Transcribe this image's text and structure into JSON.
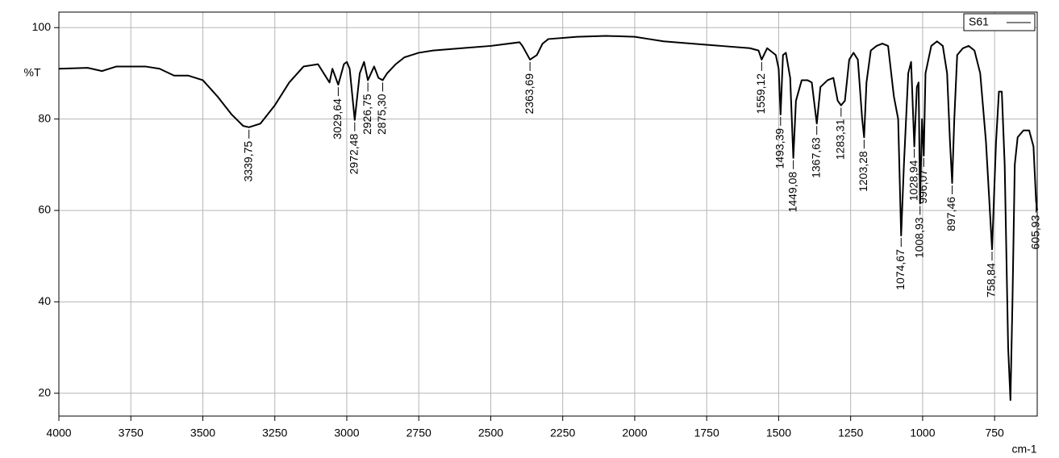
{
  "chart_data": {
    "type": "line",
    "x_label": "cm-1",
    "y_label": "%T",
    "xlim": [
      4000,
      602
    ],
    "ylim": [
      15,
      103.4
    ],
    "xticks": [
      4000,
      3750,
      3500,
      3250,
      3000,
      2750,
      2500,
      2250,
      2000,
      1750,
      1500,
      1250,
      1000,
      750
    ],
    "yticks": [
      20,
      40,
      60,
      80,
      100
    ],
    "grid": true,
    "legend": "upper right",
    "series": [
      {
        "name": "S61",
        "color": "#000000",
        "x": [
          4000,
          3900,
          3850,
          3800,
          3750,
          3700,
          3650,
          3600,
          3550,
          3500,
          3450,
          3400,
          3360,
          3339.75,
          3300,
          3250,
          3200,
          3150,
          3100,
          3060,
          3050,
          3029.64,
          3010,
          3000,
          2990,
          2972.48,
          2955,
          2940,
          2926.75,
          2905,
          2890,
          2875.3,
          2860,
          2830,
          2800,
          2750,
          2700,
          2600,
          2500,
          2400,
          2390,
          2363.69,
          2340,
          2320,
          2300,
          2200,
          2100,
          2000,
          1950,
          1900,
          1800,
          1700,
          1600,
          1570,
          1559.12,
          1540,
          1510,
          1500,
          1493.39,
          1485,
          1475,
          1460,
          1449.08,
          1440,
          1420,
          1400,
          1385,
          1367.63,
          1355,
          1330,
          1310,
          1295,
          1283.31,
          1270,
          1255,
          1240,
          1225,
          1210,
          1203.28,
          1195,
          1180,
          1160,
          1140,
          1120,
          1100,
          1085,
          1074.67,
          1065,
          1050,
          1040,
          1028.94,
          1020,
          1014,
          1008.93,
          1002,
          996.07,
          990,
          970,
          950,
          930,
          915,
          905,
          897.46,
          890,
          880,
          860,
          840,
          820,
          800,
          780,
          758.84,
          745,
          735,
          725,
          715,
          703,
          695,
          688,
          680,
          670,
          650,
          630,
          615,
          605.93,
          602
        ],
        "values": [
          91,
          91.2,
          90.5,
          91.5,
          91.5,
          91.5,
          91,
          89.5,
          89.5,
          88.5,
          85,
          81,
          78.5,
          78.2,
          79,
          83,
          88,
          91.5,
          92,
          88,
          91,
          87.5,
          92,
          92.5,
          91,
          79.8,
          90,
          92.5,
          88.5,
          91.5,
          89,
          88.5,
          90,
          92,
          93.5,
          94.5,
          95,
          95.5,
          96,
          96.8,
          96,
          93,
          94,
          96.5,
          97.5,
          98,
          98.2,
          98,
          97.5,
          97,
          96.5,
          96,
          95.5,
          95,
          93,
          95.5,
          94,
          91,
          81,
          94,
          94.5,
          89,
          71.5,
          84,
          88.5,
          88.5,
          88,
          79,
          87,
          88.5,
          89,
          84,
          83,
          84,
          93,
          94.5,
          93,
          80,
          76,
          88,
          95,
          96,
          96.5,
          96,
          85,
          80,
          54.5,
          70,
          90,
          92.5,
          74,
          87,
          88,
          61.5,
          80,
          72,
          90,
          96,
          97,
          96,
          90,
          75,
          66,
          80,
          94,
          95.5,
          96,
          95,
          90,
          75,
          51.5,
          75,
          86,
          86,
          70,
          30,
          18.5,
          40,
          70,
          76,
          77.5,
          77.5,
          74,
          62,
          60
        ]
      }
    ],
    "peaks": [
      {
        "x": {
          "value": 3339.75,
          "label": "3339,75"
        },
        "y": 78.2
      },
      {
        "x": {
          "value": 3029.64,
          "label": "3029,64"
        },
        "y": 87.5
      },
      {
        "x": {
          "value": 2972.48,
          "label": "2972,48"
        },
        "y": 79.8
      },
      {
        "x": {
          "value": 2926.75,
          "label": "2926,75"
        },
        "y": 88.5
      },
      {
        "x": {
          "value": 2875.3,
          "label": "2875,30"
        },
        "y": 88.5
      },
      {
        "x": {
          "value": 2363.69,
          "label": "2363,69"
        },
        "y": 93
      },
      {
        "x": {
          "value": 1559.12,
          "label": "1559,12"
        },
        "y": 93
      },
      {
        "x": {
          "value": 1493.39,
          "label": "1493,39"
        },
        "y": 81
      },
      {
        "x": {
          "value": 1449.08,
          "label": "1449,08"
        },
        "y": 71.5
      },
      {
        "x": {
          "value": 1367.63,
          "label": "1367,63"
        },
        "y": 79
      },
      {
        "x": {
          "value": 1283.31,
          "label": "1283,31"
        },
        "y": 83
      },
      {
        "x": {
          "value": 1203.28,
          "label": "1203,28"
        },
        "y": 76
      },
      {
        "x": {
          "value": 1074.67,
          "label": "1074,67"
        },
        "y": 54.5
      },
      {
        "x": {
          "value": 1028.94,
          "label": "1028,94"
        },
        "y": 74
      },
      {
        "x": {
          "value": 1008.93,
          "label": "1008,93"
        },
        "y": 61.5
      },
      {
        "x": {
          "value": 996.07,
          "label": "996,07"
        },
        "y": 72
      },
      {
        "x": {
          "value": 897.46,
          "label": "897,46"
        },
        "y": 66
      },
      {
        "x": {
          "value": 758.84,
          "label": "758,84"
        },
        "y": 51.5
      },
      {
        "x": {
          "value": 605.93,
          "label": "605,93"
        },
        "y": 62
      }
    ]
  }
}
